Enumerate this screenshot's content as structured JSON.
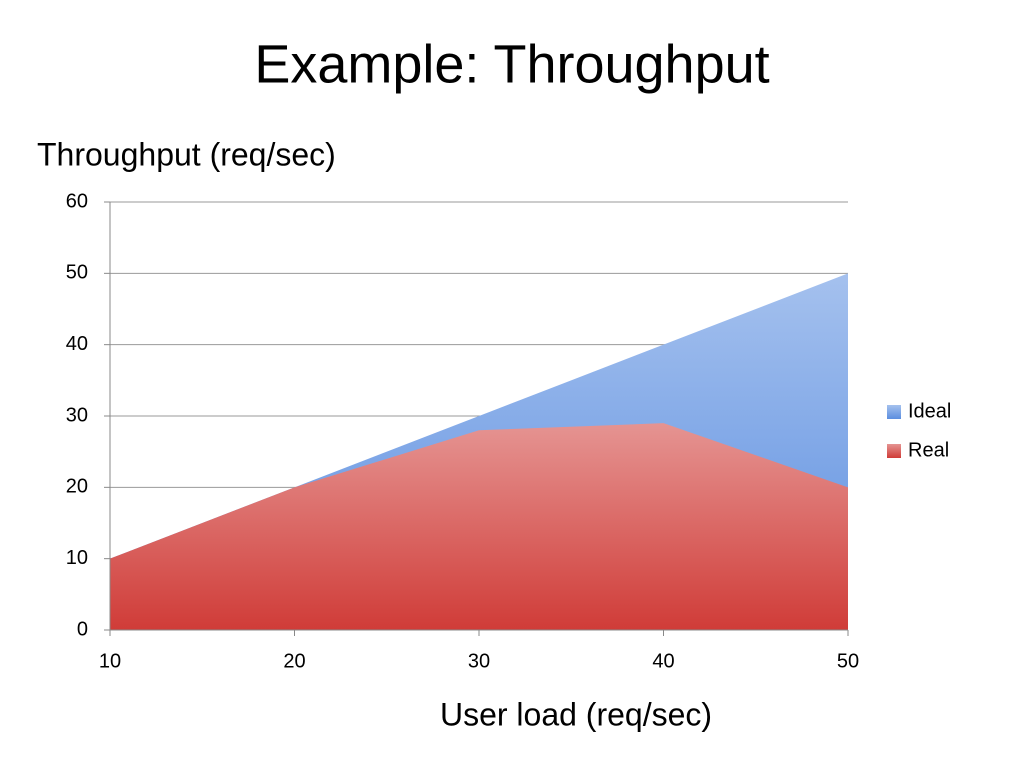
{
  "chart_data": {
    "type": "area",
    "title": "Example: Throughput",
    "y_label": "Throughput (req/sec)",
    "x_label": "User load (req/sec)",
    "x": [
      10,
      20,
      30,
      40,
      50
    ],
    "series": [
      {
        "name": "Ideal",
        "color": "#5b8ee0",
        "values": [
          10,
          20,
          30,
          40,
          50
        ]
      },
      {
        "name": "Real",
        "color": "#d03c38",
        "values": [
          10,
          20,
          28,
          29,
          20
        ]
      }
    ],
    "xlim": [
      10,
      50
    ],
    "xticks": [
      10,
      20,
      30,
      40,
      50
    ],
    "ylim": [
      0,
      60
    ],
    "yticks": [
      0,
      10,
      20,
      30,
      40,
      50,
      60
    ],
    "grid": true,
    "legend": "right"
  }
}
